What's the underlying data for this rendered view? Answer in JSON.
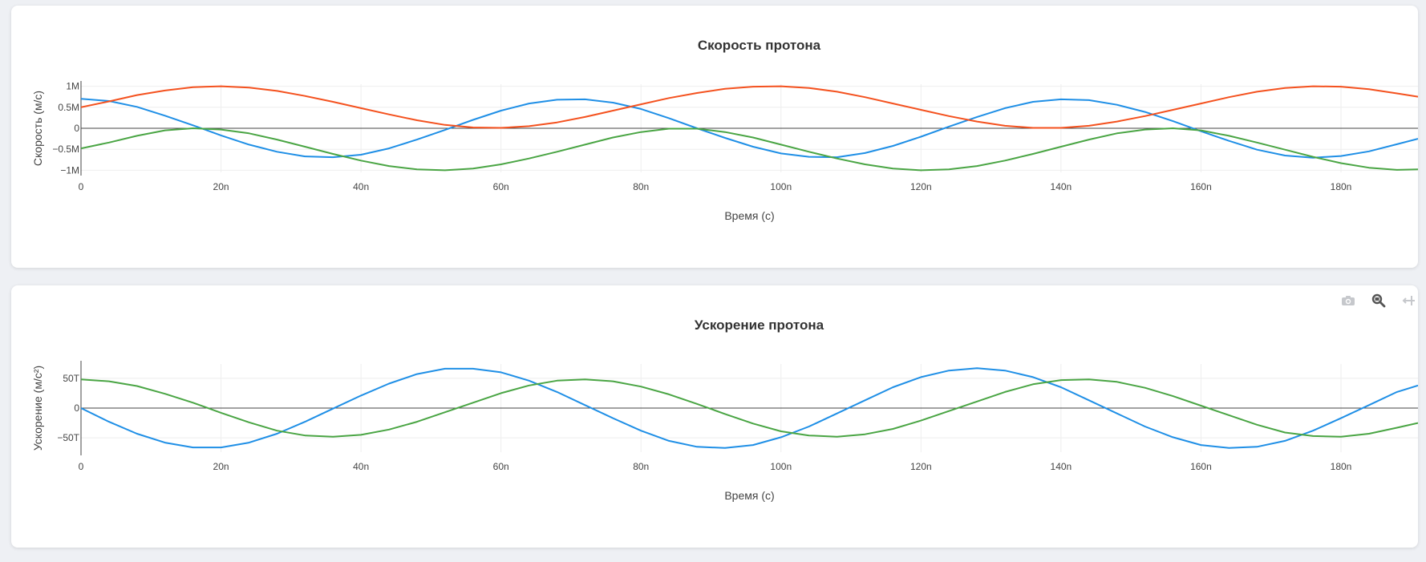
{
  "colors": {
    "vx": "#1f8fe6",
    "vy": "#4aa544",
    "speed": "#f4511e",
    "zero_line": "#444444",
    "grid": "#eeeeee",
    "text": "#444444",
    "title": "#333333"
  },
  "modebar": {
    "icons": [
      "camera-icon",
      "zoom-icon",
      "pan-icon"
    ]
  },
  "chart_data": [
    {
      "type": "line",
      "title": "Скорость протона",
      "xlabel": "Время (с)",
      "ylabel": "Скорость (м/с)",
      "xlim": [
        0,
        191
      ],
      "ylim": [
        -1.05,
        1.05
      ],
      "y_scale_label": "M",
      "x_ticks": [
        0,
        20,
        40,
        60,
        80,
        100,
        120,
        140,
        160,
        180
      ],
      "x_tick_labels": [
        "0",
        "20n",
        "40n",
        "60n",
        "80n",
        "100n",
        "120n",
        "140n",
        "160n",
        "180n"
      ],
      "y_ticks": [
        1,
        0.5,
        0,
        -0.5,
        -1
      ],
      "y_tick_labels": [
        "1M",
        "0.5M",
        "0",
        "−0.5M",
        "−1M"
      ],
      "grid": true,
      "x": [
        0,
        4,
        8,
        12,
        16,
        20,
        24,
        28,
        32,
        36,
        40,
        44,
        48,
        52,
        56,
        60,
        64,
        68,
        72,
        76,
        80,
        84,
        88,
        92,
        96,
        100,
        104,
        108,
        112,
        116,
        120,
        124,
        128,
        132,
        136,
        140,
        144,
        148,
        152,
        156,
        160,
        164,
        168,
        172,
        176,
        180,
        184,
        188,
        191
      ],
      "series": [
        {
          "key": "vx",
          "values": [
            0.7,
            0.65,
            0.51,
            0.3,
            0.07,
            -0.17,
            -0.39,
            -0.56,
            -0.67,
            -0.69,
            -0.63,
            -0.48,
            -0.27,
            -0.04,
            0.2,
            0.42,
            0.59,
            0.68,
            0.69,
            0.61,
            0.46,
            0.24,
            0.0,
            -0.23,
            -0.44,
            -0.6,
            -0.68,
            -0.69,
            -0.59,
            -0.42,
            -0.2,
            0.04,
            0.27,
            0.48,
            0.63,
            0.69,
            0.67,
            0.56,
            0.39,
            0.17,
            -0.07,
            -0.3,
            -0.51,
            -0.65,
            -0.7,
            -0.66,
            -0.55,
            -0.38,
            -0.25
          ]
        },
        {
          "key": "vy",
          "values": [
            -0.48,
            -0.34,
            -0.18,
            -0.05,
            0.0,
            -0.03,
            -0.12,
            -0.27,
            -0.44,
            -0.61,
            -0.77,
            -0.9,
            -0.98,
            -1.0,
            -0.96,
            -0.86,
            -0.72,
            -0.56,
            -0.39,
            -0.22,
            -0.09,
            -0.01,
            -0.01,
            -0.09,
            -0.22,
            -0.39,
            -0.56,
            -0.72,
            -0.86,
            -0.96,
            -1.0,
            -0.98,
            -0.9,
            -0.77,
            -0.61,
            -0.44,
            -0.27,
            -0.12,
            -0.03,
            0.0,
            -0.05,
            -0.18,
            -0.34,
            -0.51,
            -0.68,
            -0.83,
            -0.94,
            -0.99,
            -0.98
          ]
        },
        {
          "key": "speed",
          "values": [
            0.5,
            0.64,
            0.79,
            0.9,
            0.98,
            1.0,
            0.97,
            0.89,
            0.77,
            0.63,
            0.48,
            0.33,
            0.19,
            0.08,
            0.02,
            0.01,
            0.05,
            0.14,
            0.27,
            0.42,
            0.57,
            0.72,
            0.84,
            0.94,
            0.99,
            1.0,
            0.96,
            0.87,
            0.74,
            0.59,
            0.44,
            0.29,
            0.16,
            0.06,
            0.01,
            0.01,
            0.06,
            0.16,
            0.29,
            0.44,
            0.59,
            0.74,
            0.87,
            0.96,
            1.0,
            0.99,
            0.93,
            0.83,
            0.75
          ]
        }
      ]
    },
    {
      "type": "line",
      "title": "Ускорение протона",
      "xlabel": "Время (с)",
      "ylabel": "Ускорение (м/с²)",
      "xlim": [
        0,
        191
      ],
      "ylim": [
        -74,
        74
      ],
      "y_scale_label": "T",
      "x_ticks": [
        0,
        20,
        40,
        60,
        80,
        100,
        120,
        140,
        160,
        180
      ],
      "x_tick_labels": [
        "0",
        "20n",
        "40n",
        "60n",
        "80n",
        "100n",
        "120n",
        "140n",
        "160n",
        "180n"
      ],
      "y_ticks": [
        50,
        0,
        -50
      ],
      "y_tick_labels": [
        "50T",
        "0",
        "−50T"
      ],
      "grid": true,
      "x": [
        0,
        4,
        8,
        12,
        16,
        20,
        24,
        28,
        32,
        36,
        40,
        44,
        48,
        52,
        56,
        60,
        64,
        68,
        72,
        76,
        80,
        84,
        88,
        92,
        96,
        100,
        104,
        108,
        112,
        116,
        120,
        124,
        128,
        132,
        136,
        140,
        144,
        148,
        152,
        156,
        160,
        164,
        168,
        172,
        176,
        180,
        184,
        188,
        191
      ],
      "series": [
        {
          "key": "vx",
          "values": [
            0,
            -23,
            -43,
            -58,
            -66,
            -66,
            -58,
            -43,
            -23,
            -1,
            21,
            41,
            57,
            66,
            66,
            60,
            46,
            27,
            5,
            -17,
            -38,
            -55,
            -65,
            -67,
            -62,
            -49,
            -31,
            -9,
            13,
            35,
            52,
            63,
            67,
            63,
            52,
            35,
            13,
            -9,
            -31,
            -49,
            -62,
            -67,
            -65,
            -55,
            -38,
            -17,
            5,
            27,
            38
          ]
        },
        {
          "key": "vy",
          "values": [
            48,
            45,
            37,
            24,
            9,
            -8,
            -24,
            -38,
            -46,
            -48,
            -45,
            -36,
            -23,
            -7,
            9,
            25,
            38,
            46,
            48,
            45,
            36,
            23,
            7,
            -10,
            -26,
            -39,
            -46,
            -48,
            -44,
            -35,
            -21,
            -5,
            11,
            27,
            40,
            47,
            48,
            44,
            34,
            20,
            4,
            -12,
            -28,
            -41,
            -47,
            -48,
            -43,
            -33,
            -25
          ]
        }
      ]
    }
  ]
}
